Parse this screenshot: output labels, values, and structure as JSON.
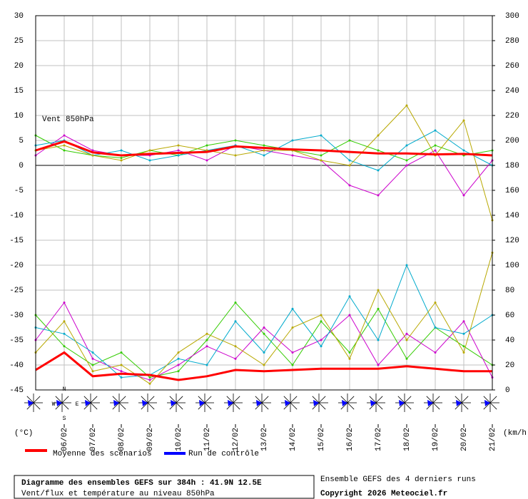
{
  "chart_data": {
    "type": "line",
    "annotation": "Vent 850hPa",
    "ylabel": "(°C)",
    "y2label": "(km/h)",
    "compass": [
      "N",
      "W",
      "E",
      "S"
    ],
    "x": [
      0,
      24,
      48,
      72,
      96,
      120,
      144,
      168,
      192,
      216,
      240,
      264,
      288,
      312,
      336,
      360,
      384
    ],
    "xlim": [
      0,
      384
    ],
    "xticks": [
      {
        "value": 24,
        "label": "06/02"
      },
      {
        "value": 48,
        "label": "07/02"
      },
      {
        "value": 72,
        "label": "08/02"
      },
      {
        "value": 96,
        "label": "09/02"
      },
      {
        "value": 120,
        "label": "10/02"
      },
      {
        "value": 144,
        "label": "11/02"
      },
      {
        "value": 168,
        "label": "12/02"
      },
      {
        "value": 192,
        "label": "13/02"
      },
      {
        "value": 216,
        "label": "14/02"
      },
      {
        "value": 240,
        "label": "15/02"
      },
      {
        "value": 264,
        "label": "16/02"
      },
      {
        "value": 288,
        "label": "17/02"
      },
      {
        "value": 312,
        "label": "18/02"
      },
      {
        "value": 336,
        "label": "19/02"
      },
      {
        "value": 360,
        "label": "20/02"
      },
      {
        "value": 384,
        "label": "21/02"
      }
    ],
    "ylim": [
      -45,
      30
    ],
    "yticks": [
      30,
      25,
      20,
      15,
      10,
      5,
      0,
      -5,
      -10,
      -15,
      -20,
      -25,
      -30,
      -35,
      -40,
      -45
    ],
    "y2lim": [
      0,
      300
    ],
    "y2ticks": [
      300,
      280,
      260,
      240,
      220,
      200,
      180,
      160,
      140,
      120,
      100,
      80,
      60,
      40,
      20,
      0
    ],
    "grid": true,
    "series": [
      {
        "color": "#33cc00",
        "values": [
          6,
          3,
          2,
          1.5,
          3,
          2,
          4,
          5,
          4,
          3,
          2,
          5,
          3,
          1,
          4,
          2,
          3
        ]
      },
      {
        "color": "#cc00cc",
        "values": [
          2,
          6,
          3,
          2,
          2,
          3,
          1,
          4,
          3,
          2,
          1,
          -4,
          -6,
          0,
          3,
          -6,
          1
        ]
      },
      {
        "color": "#00aacc",
        "values": [
          4,
          5,
          2,
          3,
          1,
          2,
          3,
          4,
          2,
          5,
          6,
          1,
          -1,
          4,
          7,
          3,
          0
        ]
      },
      {
        "color": "#b8a800",
        "values": [
          3,
          4,
          2,
          1,
          3,
          4,
          3,
          2,
          3,
          3,
          1,
          0,
          6,
          12,
          2,
          9,
          -11
        ]
      },
      {
        "color": "#33cc00",
        "axis": "y2",
        "values": [
          60,
          35,
          20,
          30,
          10,
          15,
          40,
          70,
          45,
          20,
          55,
          30,
          65,
          25,
          50,
          35,
          20
        ]
      },
      {
        "color": "#cc00cc",
        "axis": "y2",
        "values": [
          40,
          70,
          25,
          15,
          8,
          20,
          35,
          25,
          50,
          30,
          40,
          60,
          20,
          45,
          30,
          55,
          10
        ]
      },
      {
        "color": "#00aacc",
        "axis": "y2",
        "values": [
          50,
          45,
          30,
          10,
          12,
          25,
          20,
          55,
          30,
          65,
          35,
          75,
          40,
          100,
          50,
          45,
          60
        ]
      },
      {
        "color": "#b8a800",
        "axis": "y2",
        "values": [
          30,
          55,
          15,
          20,
          5,
          30,
          45,
          35,
          20,
          50,
          60,
          25,
          80,
          40,
          70,
          30,
          110
        ]
      },
      {
        "name": "Moyenne des scénarios",
        "color": "#ff0000",
        "values": [
          3,
          4.8,
          2.6,
          2,
          2.3,
          2.5,
          2.7,
          3.8,
          3.5,
          3.2,
          3,
          2.7,
          2.4,
          2.4,
          2.2,
          2.3,
          2
        ]
      },
      {
        "name": "Moyenne des scénarios",
        "color": "#ff0000",
        "axis": "y2",
        "values": [
          16,
          30,
          11,
          13,
          12,
          8,
          11,
          16,
          15,
          16,
          17,
          17,
          17,
          19,
          17,
          15,
          15
        ]
      }
    ],
    "legend": [
      {
        "label": "Moyenne des scénarios",
        "color": "#ff0000"
      },
      {
        "label": "Run de contrôle",
        "color": "#0000ff"
      }
    ],
    "footer": {
      "title": "Diagramme des ensembles GEFS sur 384h : 41.9N 12.5E",
      "subtitle": "Vent/flux et température au niveau 850hPa",
      "note": "Ensemble GEFS des 4 derniers runs",
      "copyright": "Copyright 2026 Meteociel.fr"
    }
  }
}
